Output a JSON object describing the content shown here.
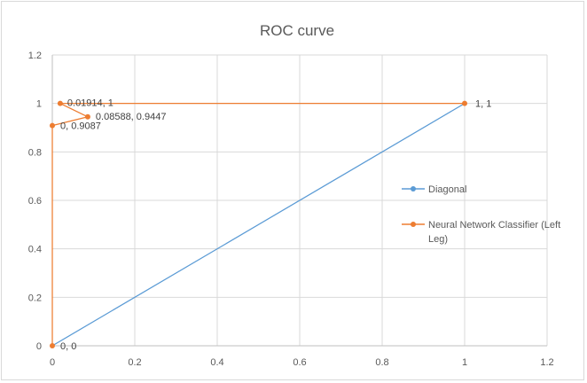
{
  "chart_data": {
    "type": "scatter",
    "title": "ROC curve",
    "xlabel": "",
    "ylabel": "",
    "xlim": [
      0,
      1.2
    ],
    "ylim": [
      0,
      1.2
    ],
    "xticks": [
      0,
      0.2,
      0.4,
      0.6,
      0.8,
      1,
      1.2
    ],
    "yticks": [
      0,
      0.2,
      0.4,
      0.6,
      0.8,
      1,
      1.2
    ],
    "xtick_labels": [
      "0",
      "0.2",
      "0.4",
      "0.6",
      "0.8",
      "1",
      "1.2"
    ],
    "ytick_labels": [
      "0",
      "0.2",
      "0.4",
      "0.6",
      "0.8",
      "1",
      "1.2"
    ],
    "grid": true,
    "legend_position": "right",
    "series": [
      {
        "name": "Diagonal",
        "color": "#5b9bd5",
        "points": [
          {
            "x": 0,
            "y": 0
          },
          {
            "x": 1,
            "y": 1
          }
        ]
      },
      {
        "name": "Neural Network Classifier (Left Leg)",
        "legend_lines": [
          "Neural Network Classifier (Left",
          "Leg)"
        ],
        "color": "#ed7d31",
        "points": [
          {
            "x": 0,
            "y": 0,
            "label": "0, 0"
          },
          {
            "x": 0,
            "y": 0.9087,
            "label": "0, 0.9087"
          },
          {
            "x": 0.08588,
            "y": 0.9447,
            "label": "0.08588, 0.9447"
          },
          {
            "x": 0.01914,
            "y": 1,
            "label": "0.01914, 1"
          },
          {
            "x": 1,
            "y": 1,
            "label": "1, 1"
          }
        ]
      }
    ]
  }
}
